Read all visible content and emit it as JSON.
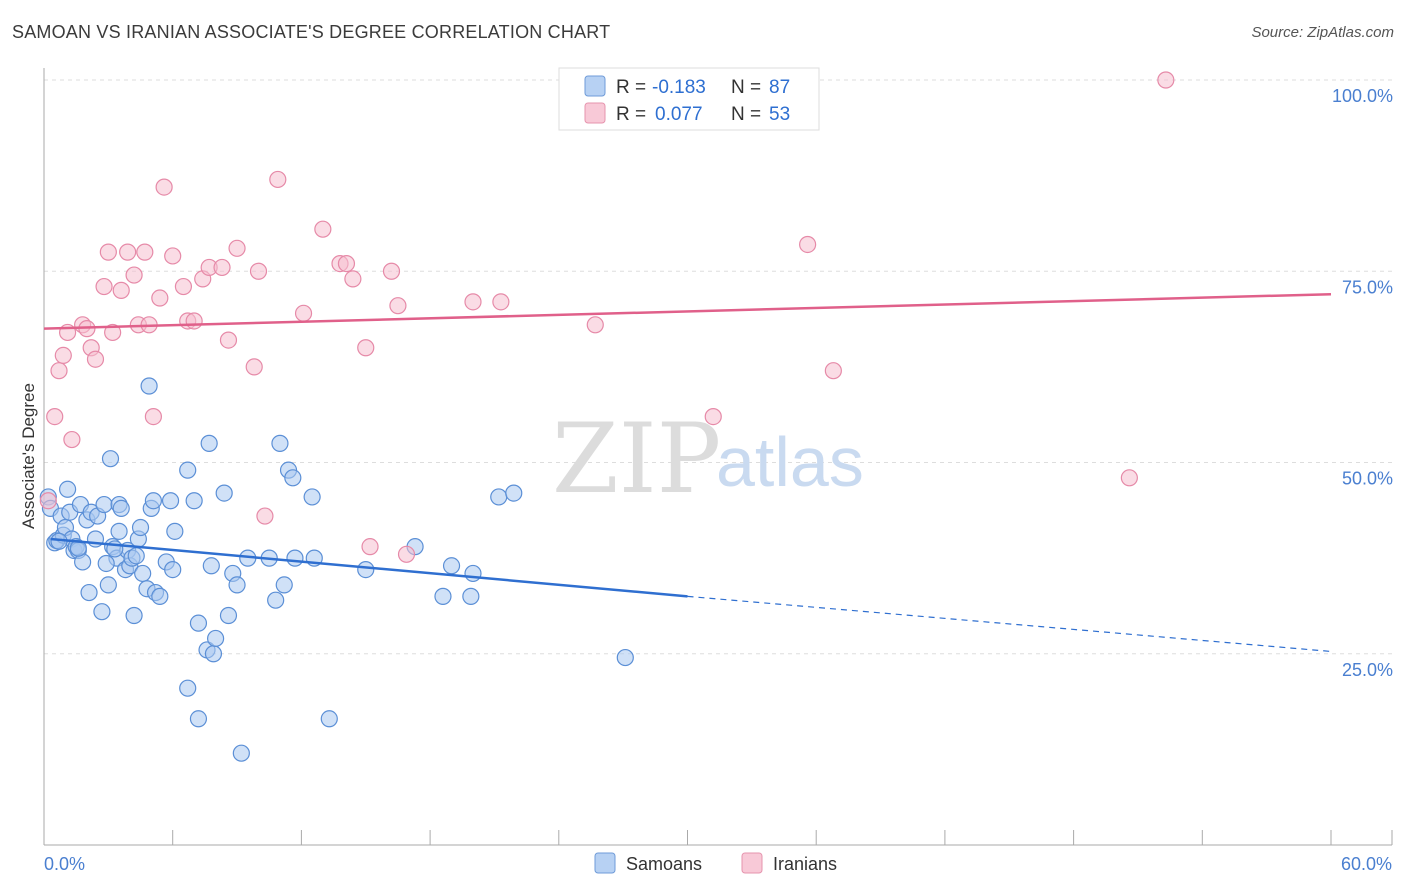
{
  "header": {
    "title": "SAMOAN VS IRANIAN ASSOCIATE'S DEGREE CORRELATION CHART",
    "source": "Source: ZipAtlas.com"
  },
  "watermark": {
    "zip": "ZIP",
    "atlas": "atlas"
  },
  "legend": {
    "samoan": {
      "r_label": "R =",
      "r_value": "-0.183",
      "n_label": "N =",
      "n_value": "87"
    },
    "iranian": {
      "r_label": "R =",
      "r_value": "0.077",
      "n_label": "N =",
      "n_value": "53"
    }
  },
  "bottom_legend": {
    "samoan": "Samoans",
    "iranian": "Iranians"
  },
  "colors": {
    "samoan_fill": "#a9c8f0",
    "samoan_stroke": "#5b8fd6",
    "samoan_line": "#2f6fd0",
    "iranian_fill": "#f6bfd0",
    "iranian_stroke": "#e68aa8",
    "iranian_line": "#e0608a",
    "grid": "#dddddd",
    "tick_text": "#4a7fd0"
  },
  "chart_data": {
    "type": "scatter",
    "xlabel": "",
    "ylabel": "Associate's Degree",
    "xlim": [
      0,
      60
    ],
    "ylim": [
      0,
      102
    ],
    "x_tick_labels": {
      "min": "0.0%",
      "max": "60.0%"
    },
    "y_ticks": [
      {
        "value": 25,
        "label": "25.0%"
      },
      {
        "value": 50,
        "label": "50.0%"
      },
      {
        "value": 75,
        "label": "75.0%"
      },
      {
        "value": 100,
        "label": "100.0%"
      }
    ],
    "grid": true,
    "series": [
      {
        "name": "Samoans",
        "trend": {
          "x0": 0.3,
          "y0": 40.0,
          "x1": 30.0,
          "y1": 32.5,
          "dash_x1": 60.0,
          "dash_y1": 25.3
        },
        "points": [
          [
            0.2,
            45.5
          ],
          [
            0.3,
            44.0
          ],
          [
            0.5,
            39.5
          ],
          [
            0.6,
            39.8
          ],
          [
            0.8,
            43.0
          ],
          [
            0.9,
            40.5
          ],
          [
            1.0,
            41.5
          ],
          [
            1.1,
            46.5
          ],
          [
            1.2,
            43.5
          ],
          [
            1.3,
            40.0
          ],
          [
            1.4,
            38.5
          ],
          [
            1.5,
            39.0
          ],
          [
            1.6,
            38.5
          ],
          [
            1.7,
            44.5
          ],
          [
            1.8,
            37.0
          ],
          [
            2.0,
            42.5
          ],
          [
            2.1,
            33.0
          ],
          [
            2.2,
            43.5
          ],
          [
            2.4,
            40.0
          ],
          [
            2.5,
            43.0
          ],
          [
            2.7,
            30.5
          ],
          [
            2.8,
            44.5
          ],
          [
            3.0,
            34.0
          ],
          [
            3.1,
            50.5
          ],
          [
            3.2,
            39.0
          ],
          [
            3.4,
            37.5
          ],
          [
            3.5,
            41.0
          ],
          [
            3.5,
            44.5
          ],
          [
            3.6,
            44.0
          ],
          [
            3.8,
            36.0
          ],
          [
            3.9,
            38.5
          ],
          [
            4.0,
            36.5
          ],
          [
            4.1,
            37.5
          ],
          [
            4.2,
            30.0
          ],
          [
            4.4,
            40.0
          ],
          [
            4.5,
            41.5
          ],
          [
            4.6,
            35.5
          ],
          [
            4.8,
            33.5
          ],
          [
            4.9,
            60.0
          ],
          [
            5.0,
            44.0
          ],
          [
            5.1,
            45.0
          ],
          [
            5.2,
            33.0
          ],
          [
            5.4,
            32.5
          ],
          [
            5.7,
            37.0
          ],
          [
            5.9,
            45.0
          ],
          [
            6.0,
            36.0
          ],
          [
            6.1,
            41.0
          ],
          [
            6.7,
            49.0
          ],
          [
            6.7,
            20.5
          ],
          [
            7.0,
            45.0
          ],
          [
            7.2,
            16.5
          ],
          [
            7.2,
            29.0
          ],
          [
            7.6,
            25.5
          ],
          [
            7.7,
            52.5
          ],
          [
            7.8,
            36.5
          ],
          [
            7.9,
            25.0
          ],
          [
            8.0,
            27.0
          ],
          [
            8.4,
            46.0
          ],
          [
            8.6,
            30.0
          ],
          [
            8.8,
            35.5
          ],
          [
            9.0,
            34.0
          ],
          [
            9.2,
            12.0
          ],
          [
            9.5,
            37.5
          ],
          [
            10.5,
            37.5
          ],
          [
            10.8,
            32.0
          ],
          [
            11.0,
            52.5
          ],
          [
            11.2,
            34.0
          ],
          [
            11.4,
            49.0
          ],
          [
            11.6,
            48.0
          ],
          [
            11.7,
            37.5
          ],
          [
            12.5,
            45.5
          ],
          [
            12.6,
            37.5
          ],
          [
            13.3,
            16.5
          ],
          [
            15.0,
            36.0
          ],
          [
            17.3,
            39.0
          ],
          [
            18.6,
            32.5
          ],
          [
            19.0,
            36.5
          ],
          [
            19.9,
            32.5
          ],
          [
            20.0,
            35.5
          ],
          [
            21.2,
            45.5
          ],
          [
            21.9,
            46.0
          ],
          [
            27.1,
            24.5
          ],
          [
            1.6,
            38.8
          ],
          [
            3.3,
            38.7
          ],
          [
            2.9,
            36.8
          ],
          [
            4.3,
            37.8
          ],
          [
            0.7,
            39.7
          ]
        ]
      },
      {
        "name": "Iranians",
        "trend": {
          "x0": 0.0,
          "y0": 67.5,
          "x1": 60.0,
          "y1": 72.0
        },
        "points": [
          [
            0.2,
            45.0
          ],
          [
            0.5,
            56.0
          ],
          [
            0.7,
            62.0
          ],
          [
            0.9,
            64.0
          ],
          [
            1.1,
            67.0
          ],
          [
            1.3,
            53.0
          ],
          [
            1.8,
            68.0
          ],
          [
            2.0,
            67.5
          ],
          [
            2.2,
            65.0
          ],
          [
            2.4,
            63.5
          ],
          [
            2.8,
            73.0
          ],
          [
            3.0,
            77.5
          ],
          [
            3.2,
            67.0
          ],
          [
            3.6,
            72.5
          ],
          [
            3.9,
            77.5
          ],
          [
            4.2,
            74.5
          ],
          [
            4.4,
            68.0
          ],
          [
            4.7,
            77.5
          ],
          [
            4.9,
            68.0
          ],
          [
            5.1,
            56.0
          ],
          [
            5.4,
            71.5
          ],
          [
            5.6,
            86.0
          ],
          [
            6.0,
            77.0
          ],
          [
            6.5,
            73.0
          ],
          [
            6.7,
            68.5
          ],
          [
            7.0,
            68.5
          ],
          [
            7.4,
            74.0
          ],
          [
            7.7,
            75.5
          ],
          [
            8.3,
            75.5
          ],
          [
            8.6,
            66.0
          ],
          [
            9.0,
            78.0
          ],
          [
            9.8,
            62.5
          ],
          [
            10.0,
            75.0
          ],
          [
            10.3,
            43.0
          ],
          [
            10.9,
            87.0
          ],
          [
            12.1,
            69.5
          ],
          [
            13.0,
            80.5
          ],
          [
            13.8,
            76.0
          ],
          [
            14.1,
            76.0
          ],
          [
            14.4,
            74.0
          ],
          [
            15.0,
            65.0
          ],
          [
            15.2,
            39.0
          ],
          [
            16.2,
            75.0
          ],
          [
            16.5,
            70.5
          ],
          [
            16.9,
            38.0
          ],
          [
            20.0,
            71.0
          ],
          [
            21.3,
            71.0
          ],
          [
            25.7,
            68.0
          ],
          [
            31.2,
            56.0
          ],
          [
            35.6,
            78.5
          ],
          [
            36.8,
            62.0
          ],
          [
            50.6,
            48.0
          ],
          [
            52.3,
            100.0
          ]
        ]
      }
    ]
  }
}
